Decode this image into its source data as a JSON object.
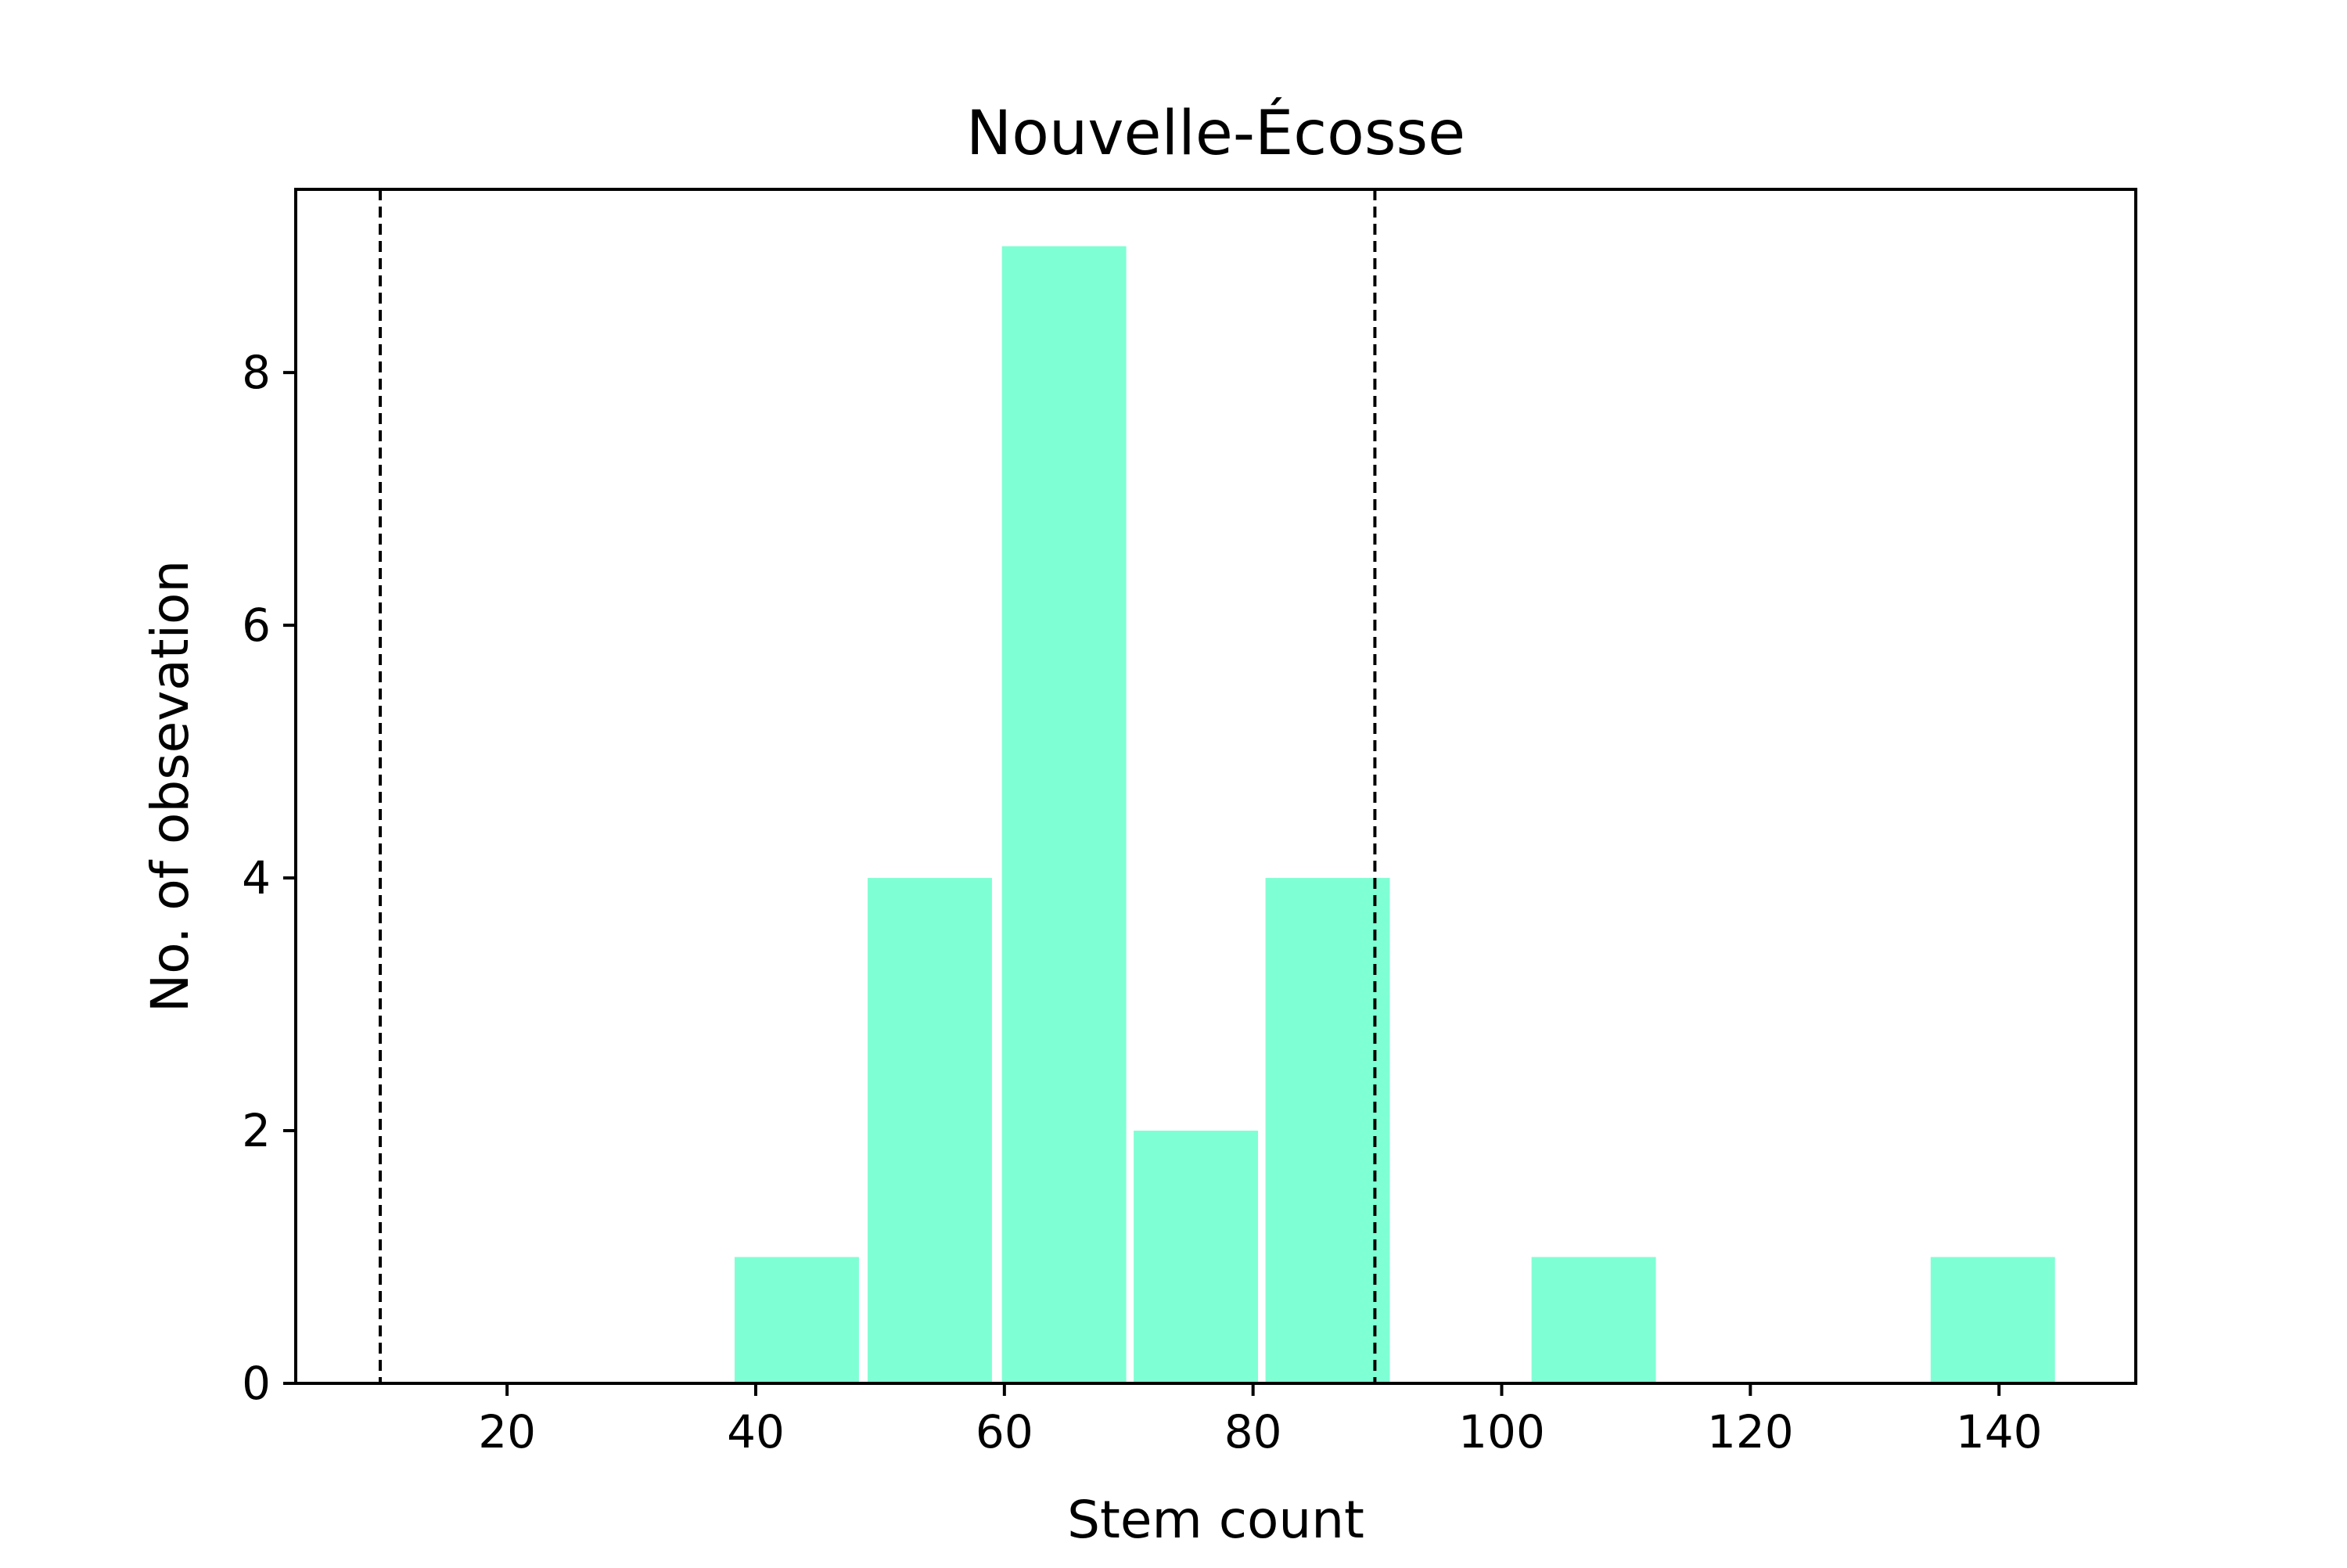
{
  "chart_data": {
    "type": "bar",
    "title": "Nouvelle-Écosse",
    "xlabel": "Stem count",
    "ylabel": "No. of obsevation",
    "xlim": [
      3,
      151
    ],
    "ylim": [
      0,
      9.45
    ],
    "xticks": [
      20,
      40,
      60,
      80,
      100,
      120,
      140
    ],
    "yticks": [
      0,
      2,
      4,
      6,
      8
    ],
    "bins": [
      {
        "x0": 38.3,
        "x1": 48.3,
        "count": 1
      },
      {
        "x0": 49.0,
        "x1": 59.0,
        "count": 4
      },
      {
        "x0": 59.8,
        "x1": 69.8,
        "count": 9
      },
      {
        "x0": 70.4,
        "x1": 80.4,
        "count": 2
      },
      {
        "x0": 81.0,
        "x1": 91.0,
        "count": 4
      },
      {
        "x0": 102.4,
        "x1": 112.4,
        "count": 1
      },
      {
        "x0": 134.5,
        "x1": 144.5,
        "count": 1
      }
    ],
    "reference_lines": [
      9.8,
      89.8
    ],
    "bar_color": "#7fffd4",
    "reference_line_color": "#000000",
    "grid": false,
    "legend": "none"
  }
}
